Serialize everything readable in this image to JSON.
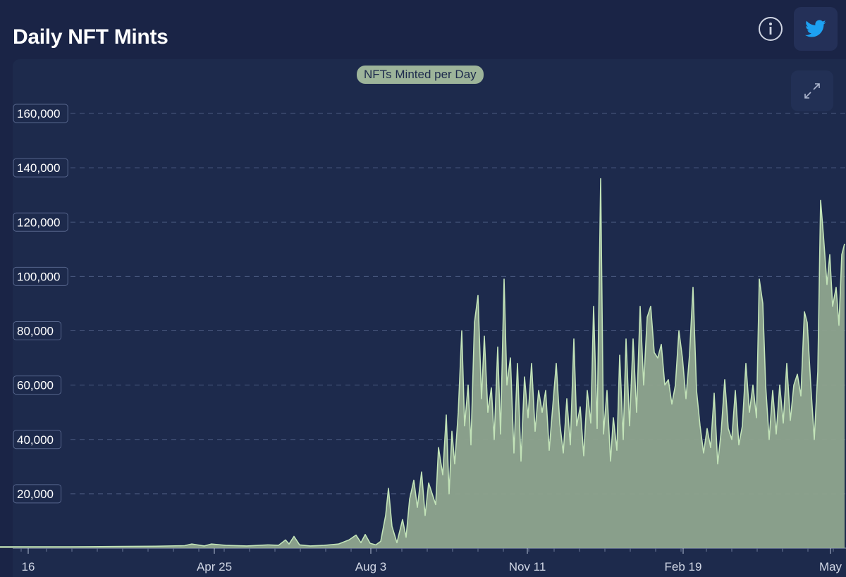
{
  "header": {
    "title": "Daily NFT Mints",
    "info_icon": "info-icon",
    "share_icon": "twitter-icon",
    "expand_icon": "expand-icon"
  },
  "colors": {
    "background": "#1a2446",
    "panel": "#1d2a4c",
    "area_fill": "#8fa58e",
    "area_line": "#c2e3b8",
    "legend_pill": "#9db49a",
    "twitter_blue": "#1da1f2"
  },
  "chart_data": {
    "type": "area",
    "legend": [
      "NFTs Minted per Day"
    ],
    "legend_position": "top-center",
    "grid": true,
    "y_range": [
      0,
      160000
    ],
    "yticks": [
      "20,000",
      "40,000",
      "60,000",
      "80,000",
      "100,000",
      "120,000",
      "140,000",
      "160,000"
    ],
    "xticks": [
      "16",
      "Apr 25",
      "Aug 3",
      "Nov 11",
      "Feb 19",
      "May"
    ],
    "series": [
      {
        "name": "NFTs Minted per Day",
        "points": [
          [
            0,
            500
          ],
          [
            40,
            500
          ],
          [
            100,
            500
          ],
          [
            160,
            600
          ],
          [
            220,
            700
          ],
          [
            262,
            900
          ],
          [
            272,
            1500
          ],
          [
            280,
            1200
          ],
          [
            290,
            800
          ],
          [
            300,
            1500
          ],
          [
            320,
            1000
          ],
          [
            350,
            800
          ],
          [
            380,
            1200
          ],
          [
            395,
            1000
          ],
          [
            405,
            3000
          ],
          [
            410,
            1500
          ],
          [
            417,
            4300
          ],
          [
            425,
            1200
          ],
          [
            440,
            800
          ],
          [
            460,
            1000
          ],
          [
            480,
            1500
          ],
          [
            495,
            3000
          ],
          [
            505,
            4800
          ],
          [
            512,
            2000
          ],
          [
            518,
            5000
          ],
          [
            525,
            1800
          ],
          [
            533,
            1200
          ],
          [
            540,
            2500
          ],
          [
            547,
            12000
          ],
          [
            551,
            22000
          ],
          [
            556,
            8000
          ],
          [
            563,
            2000
          ],
          [
            571,
            10500
          ],
          [
            576,
            4000
          ],
          [
            581,
            18000
          ],
          [
            587,
            25000
          ],
          [
            592,
            15000
          ],
          [
            598,
            28000
          ],
          [
            603,
            12000
          ],
          [
            608,
            24000
          ],
          [
            613,
            20000
          ],
          [
            618,
            16000
          ],
          [
            622,
            37000
          ],
          [
            628,
            27000
          ],
          [
            633,
            49000
          ],
          [
            637,
            20000
          ],
          [
            641,
            43000
          ],
          [
            645,
            31000
          ],
          [
            650,
            50000
          ],
          [
            655,
            80000
          ],
          [
            659,
            45000
          ],
          [
            664,
            60000
          ],
          [
            668,
            38000
          ],
          [
            673,
            83000
          ],
          [
            678,
            93000
          ],
          [
            683,
            55000
          ],
          [
            687,
            78000
          ],
          [
            692,
            50000
          ],
          [
            697,
            59000
          ],
          [
            701,
            40000
          ],
          [
            706,
            74000
          ],
          [
            710,
            42000
          ],
          [
            715,
            99000
          ],
          [
            719,
            60000
          ],
          [
            724,
            70000
          ],
          [
            729,
            35000
          ],
          [
            734,
            68000
          ],
          [
            739,
            32000
          ],
          [
            744,
            63000
          ],
          [
            749,
            48000
          ],
          [
            754,
            68000
          ],
          [
            759,
            43000
          ],
          [
            764,
            58000
          ],
          [
            769,
            50000
          ],
          [
            774,
            58000
          ],
          [
            779,
            36000
          ],
          [
            784,
            52000
          ],
          [
            789,
            68000
          ],
          [
            794,
            46000
          ],
          [
            799,
            35000
          ],
          [
            804,
            55000
          ],
          [
            809,
            38000
          ],
          [
            814,
            77000
          ],
          [
            818,
            45000
          ],
          [
            823,
            52000
          ],
          [
            828,
            34000
          ],
          [
            833,
            58000
          ],
          [
            838,
            46000
          ],
          [
            842,
            89000
          ],
          [
            847,
            44000
          ],
          [
            852,
            136000
          ],
          [
            856,
            42000
          ],
          [
            861,
            58000
          ],
          [
            866,
            32000
          ],
          [
            870,
            48000
          ],
          [
            875,
            36000
          ],
          [
            879,
            71000
          ],
          [
            884,
            40000
          ],
          [
            888,
            77000
          ],
          [
            893,
            45000
          ],
          [
            898,
            77000
          ],
          [
            903,
            50000
          ],
          [
            908,
            89000
          ],
          [
            913,
            60000
          ],
          [
            918,
            85000
          ],
          [
            923,
            89000
          ],
          [
            928,
            72000
          ],
          [
            933,
            70000
          ],
          [
            938,
            75000
          ],
          [
            943,
            60000
          ],
          [
            948,
            62000
          ],
          [
            953,
            53000
          ],
          [
            958,
            60000
          ],
          [
            963,
            80000
          ],
          [
            968,
            70000
          ],
          [
            973,
            55000
          ],
          [
            978,
            71000
          ],
          [
            983,
            96000
          ],
          [
            988,
            58000
          ],
          [
            993,
            45000
          ],
          [
            998,
            35000
          ],
          [
            1003,
            44000
          ],
          [
            1008,
            37000
          ],
          [
            1013,
            57000
          ],
          [
            1018,
            31000
          ],
          [
            1023,
            43000
          ],
          [
            1028,
            62000
          ],
          [
            1033,
            44000
          ],
          [
            1038,
            40000
          ],
          [
            1043,
            58000
          ],
          [
            1048,
            38000
          ],
          [
            1053,
            45000
          ],
          [
            1058,
            68000
          ],
          [
            1063,
            50000
          ],
          [
            1068,
            60000
          ],
          [
            1073,
            48000
          ],
          [
            1077,
            99000
          ],
          [
            1082,
            90000
          ],
          [
            1086,
            60000
          ],
          [
            1091,
            40000
          ],
          [
            1096,
            58000
          ],
          [
            1101,
            42000
          ],
          [
            1106,
            60000
          ],
          [
            1111,
            46000
          ],
          [
            1116,
            68000
          ],
          [
            1121,
            47000
          ],
          [
            1126,
            60000
          ],
          [
            1131,
            64000
          ],
          [
            1136,
            56000
          ],
          [
            1141,
            87000
          ],
          [
            1145,
            83000
          ],
          [
            1150,
            60000
          ],
          [
            1155,
            40000
          ],
          [
            1160,
            65000
          ],
          [
            1164,
            128000
          ],
          [
            1168,
            115000
          ],
          [
            1173,
            97000
          ],
          [
            1177,
            108000
          ],
          [
            1181,
            89000
          ],
          [
            1186,
            96000
          ],
          [
            1190,
            82000
          ],
          [
            1194,
            108000
          ],
          [
            1198,
            112000
          ]
        ]
      }
    ]
  }
}
